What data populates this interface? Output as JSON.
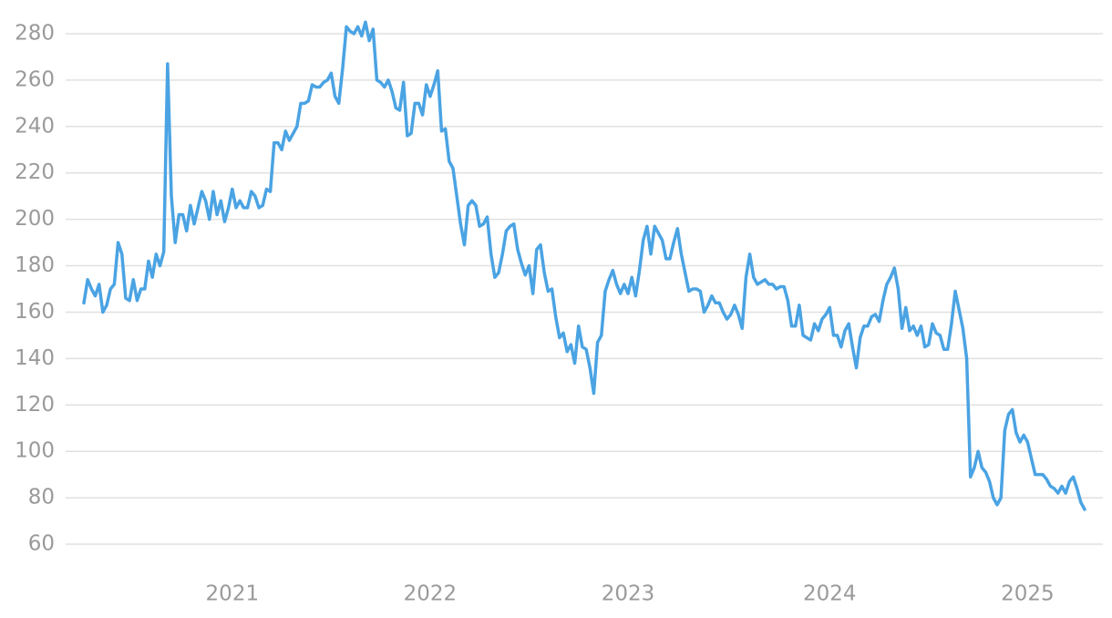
{
  "chart_data": {
    "type": "line",
    "color": "#4aa3e3",
    "grid": true,
    "ylim": [
      50,
      290
    ],
    "yticks": [
      60,
      80,
      100,
      120,
      140,
      160,
      180,
      200,
      220,
      240,
      260,
      280
    ],
    "categories": [
      null,
      null,
      null,
      null,
      null,
      null,
      null,
      null,
      null,
      null,
      null,
      null,
      null,
      null,
      null,
      null,
      null,
      null,
      null,
      null,
      null,
      null,
      null,
      null,
      null,
      null,
      null,
      null,
      null,
      null,
      null,
      null,
      null,
      null,
      null,
      null,
      null,
      null,
      null,
      "2021",
      null,
      null,
      null,
      null,
      null,
      null,
      null,
      null,
      null,
      null,
      null,
      null,
      null,
      null,
      null,
      null,
      null,
      null,
      null,
      null,
      null,
      null,
      null,
      null,
      null,
      null,
      null,
      null,
      null,
      null,
      null,
      null,
      null,
      null,
      null,
      null,
      null,
      null,
      null,
      null,
      null,
      null,
      null,
      null,
      null,
      null,
      null,
      null,
      null,
      null,
      null,
      "2022",
      null,
      null,
      null,
      null,
      null,
      null,
      null,
      null,
      null,
      null,
      null,
      null,
      null,
      null,
      null,
      null,
      null,
      null,
      null,
      null,
      null,
      null,
      null,
      null,
      null,
      null,
      null,
      null,
      null,
      null,
      null,
      null,
      null,
      null,
      null,
      null,
      null,
      null,
      null,
      null,
      null,
      null,
      null,
      null,
      null,
      null,
      null,
      null,
      null,
      null,
      null,
      "2023",
      null,
      null,
      null,
      null,
      null,
      null,
      null,
      null,
      null,
      null,
      null,
      null,
      null,
      null,
      null,
      null,
      null,
      null,
      null,
      null,
      null,
      null,
      null,
      null,
      null,
      null,
      null,
      null,
      null,
      null,
      null,
      null,
      null,
      null,
      null,
      null,
      null,
      null,
      null,
      null,
      null,
      null,
      null,
      null,
      null,
      null,
      null,
      null,
      null,
      null,
      null,
      null,
      "2024",
      null,
      null,
      null,
      null,
      null,
      null,
      null,
      null,
      null,
      null,
      null,
      null,
      null,
      null,
      null,
      null,
      null,
      null,
      null,
      null,
      null,
      null,
      null,
      null,
      null,
      null,
      null,
      null,
      null,
      null,
      null,
      null,
      null,
      null,
      null,
      null,
      null,
      null,
      null,
      null,
      null,
      null,
      null,
      null,
      null,
      null,
      null,
      null,
      null,
      null,
      null,
      "2025",
      null,
      null,
      null,
      null,
      null,
      null,
      null,
      null,
      null,
      null,
      null,
      null,
      null,
      null,
      null
    ],
    "values": [
      164,
      174,
      170,
      167,
      172,
      160,
      163,
      170,
      172,
      190,
      185,
      166,
      165,
      174,
      165,
      170,
      170,
      182,
      175,
      185,
      180,
      186,
      267,
      210,
      190,
      202,
      202,
      195,
      206,
      198,
      205,
      212,
      208,
      200,
      212,
      202,
      208,
      199,
      205,
      213,
      205,
      208,
      205,
      205,
      212,
      210,
      205,
      206,
      213,
      212,
      233,
      233,
      230,
      238,
      234,
      237,
      240,
      250,
      250,
      251,
      258,
      257,
      257,
      259,
      260,
      263,
      253,
      250,
      265,
      283,
      281,
      280,
      283,
      279,
      285,
      277,
      282,
      260,
      259,
      257,
      260,
      255,
      248,
      247,
      259,
      236,
      237,
      250,
      250,
      245,
      258,
      253,
      258,
      264,
      238,
      239,
      225,
      222,
      210,
      198,
      189,
      206,
      208,
      206,
      197,
      198,
      201,
      185,
      175,
      177,
      185,
      195,
      197,
      198,
      187,
      181,
      176,
      180,
      168,
      187,
      189,
      177,
      169,
      170,
      158,
      149,
      151,
      143,
      146,
      138,
      154,
      145,
      144,
      136,
      125,
      147,
      150,
      169,
      174,
      178,
      172,
      168,
      172,
      168,
      175,
      167,
      178,
      191,
      197,
      185,
      197,
      194,
      191,
      183,
      183,
      190,
      196,
      185,
      177,
      169,
      170,
      170,
      169,
      160,
      163,
      167,
      164,
      164,
      160,
      157,
      159,
      163,
      159,
      153,
      175,
      185,
      175,
      172,
      173,
      174,
      172,
      172,
      170,
      171,
      171,
      165,
      154,
      154,
      163,
      150,
      149,
      148,
      155,
      152,
      157,
      159,
      162,
      150,
      150,
      145,
      152,
      155,
      145,
      136,
      149,
      154,
      154,
      158,
      159,
      156,
      165,
      172,
      175,
      179,
      170,
      153,
      162,
      152,
      154,
      150,
      154,
      145,
      146,
      155,
      151,
      150,
      144,
      144,
      155,
      169,
      161,
      153,
      140,
      89,
      93,
      100,
      93,
      91,
      87,
      80,
      77,
      80,
      109,
      116,
      118,
      108,
      104,
      107,
      104,
      97,
      90,
      90,
      90,
      88,
      85,
      84,
      82,
      85,
      82,
      87,
      89,
      84,
      78,
      75
    ]
  }
}
